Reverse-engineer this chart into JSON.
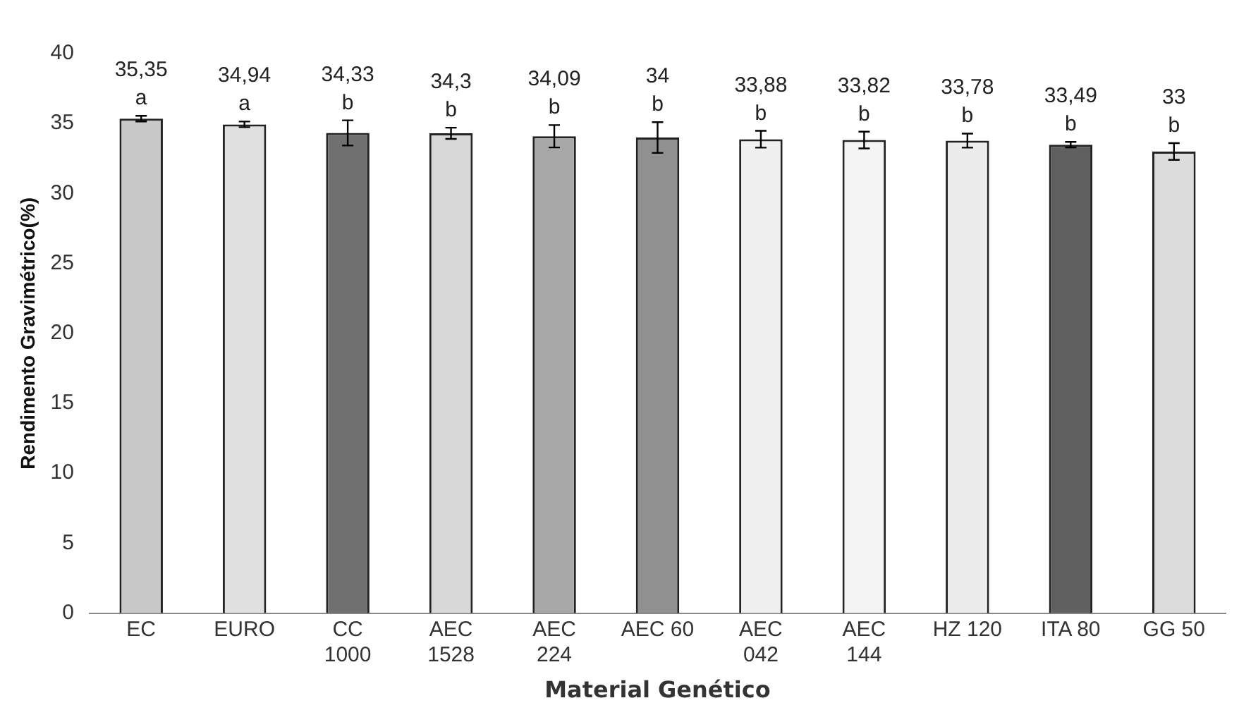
{
  "chart_data": {
    "type": "bar",
    "xlabel": "Material Genético",
    "ylabel": "Rendimento Gravimétrico(%)",
    "categories": [
      "EC",
      "EURO",
      "CC 1000",
      "AEC 1528",
      "AEC 224",
      "AEC 60",
      "AEC 042",
      "AEC 144",
      "HZ 120",
      "ITA 80",
      "GG 50"
    ],
    "values": [
      35.35,
      34.94,
      34.33,
      34.3,
      34.09,
      34,
      33.88,
      33.82,
      33.78,
      33.49,
      33
    ],
    "value_labels": [
      "35,35",
      "34,94",
      "34,33",
      "34,3",
      "34,09",
      "34",
      "33,88",
      "33,82",
      "33,78",
      "33,49",
      "33"
    ],
    "errors": [
      0.2,
      0.2,
      0.9,
      0.4,
      0.8,
      1.1,
      0.6,
      0.6,
      0.5,
      0.2,
      0.6
    ],
    "colors": [
      "#c8c8c8",
      "#e0e0e0",
      "#707070",
      "#d8d8d8",
      "#a8a8a8",
      "#909090",
      "#f0f0f0",
      "#f4f4f4",
      "#ececec",
      "#606060",
      "#dcdcdc"
    ],
    "annotations": [
      {
        "text": "a",
        "x": "EC",
        "y": 35.35
      },
      {
        "text": "a",
        "x": "EURO",
        "y": 34.94
      },
      {
        "text": "b",
        "x": "CC 1000",
        "y": 34.33
      },
      {
        "text": "b",
        "x": "AEC 1528",
        "y": 34.3
      },
      {
        "text": "b",
        "x": "AEC 224",
        "y": 34.09
      },
      {
        "text": "b",
        "x": "AEC 60",
        "y": 34
      },
      {
        "text": "b",
        "x": "AEC 042",
        "y": 33.88
      },
      {
        "text": "b",
        "x": "AEC 144",
        "y": 33.82
      },
      {
        "text": "b",
        "x": "HZ 120",
        "y": 33.78
      },
      {
        "text": "b",
        "x": "ITA 80",
        "y": 33.49
      },
      {
        "text": "b",
        "x": "GG 50",
        "y": 33
      }
    ],
    "ylim": [
      0,
      40
    ],
    "yticks": [
      0,
      5,
      10,
      15,
      20,
      25,
      30,
      35,
      40
    ],
    "grid": false,
    "legend": false
  }
}
